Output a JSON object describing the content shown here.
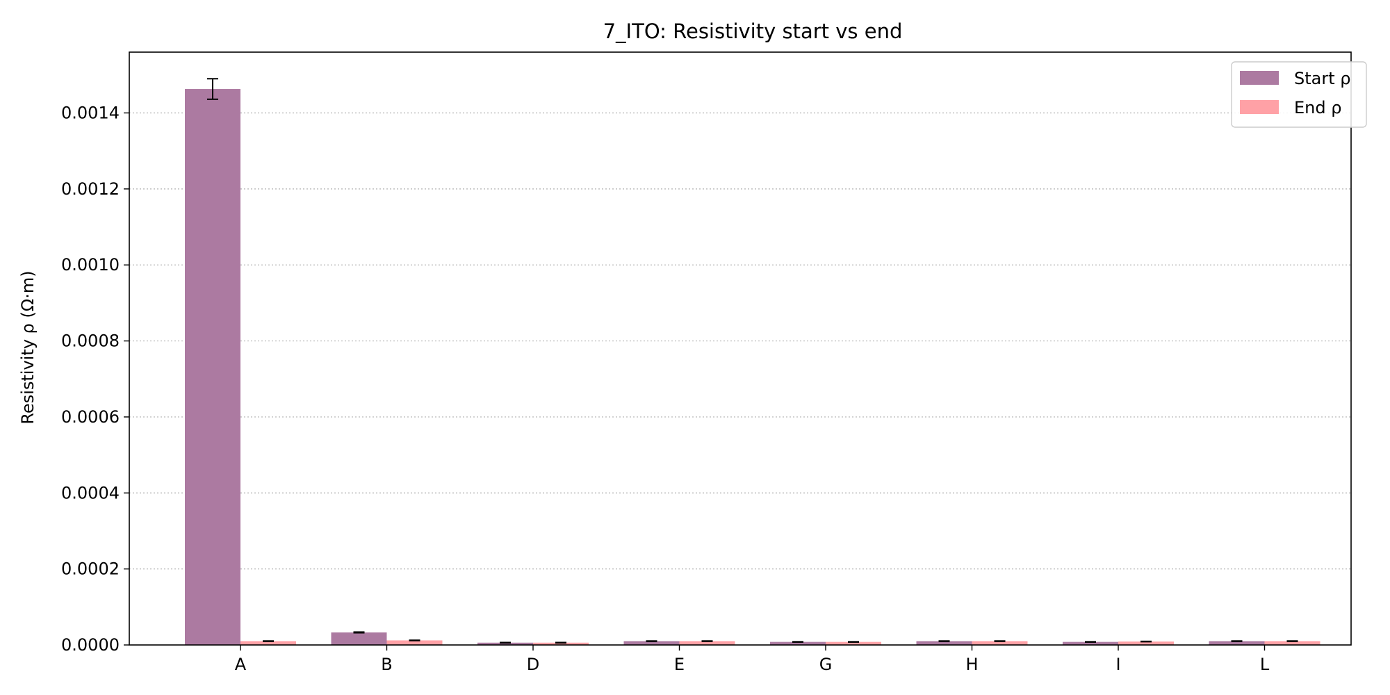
{
  "chart_data": {
    "type": "bar",
    "title": "7_ITO: Resistivity start vs end",
    "xlabel": "",
    "ylabel": "Resistivity ρ (Ω·m)",
    "categories": [
      "A",
      "B",
      "D",
      "E",
      "G",
      "H",
      "I",
      "L"
    ],
    "ylim": [
      0,
      0.00156
    ],
    "yticks": [
      "0.0000",
      "0.0002",
      "0.0004",
      "0.0006",
      "0.0008",
      "0.0010",
      "0.0012",
      "0.0014"
    ],
    "grid": "horizontal dotted",
    "legend_position": "top-right",
    "series": [
      {
        "name": "Start ρ",
        "color": "#ac7aa1",
        "values": [
          0.001463,
          3.3e-05,
          6e-06,
          1e-05,
          8e-06,
          1e-05,
          8e-06,
          1e-05
        ],
        "errors": [
          2.7e-05,
          1e-06,
          5e-07,
          5e-07,
          5e-07,
          5e-07,
          5e-07,
          5e-07
        ]
      },
      {
        "name": "End ρ",
        "color": "#ffa1a6",
        "values": [
          1e-05,
          1.2e-05,
          6e-06,
          1e-05,
          8e-06,
          1e-05,
          9e-06,
          1e-05
        ],
        "errors": [
          5e-07,
          5e-07,
          5e-07,
          5e-07,
          5e-07,
          5e-07,
          5e-07,
          5e-07
        ]
      }
    ]
  }
}
